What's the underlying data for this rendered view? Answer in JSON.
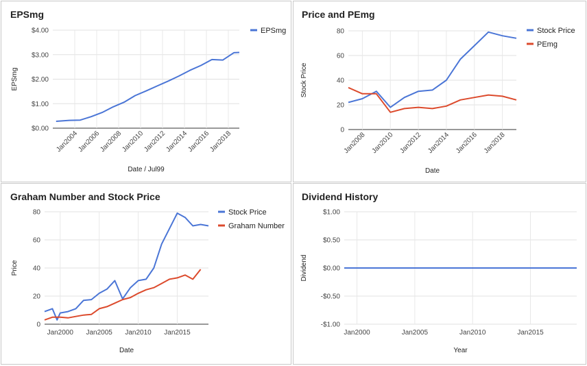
{
  "chart_data": [
    {
      "type": "line",
      "title": "EPSmg",
      "xlabel": "Date / Jul99",
      "ylabel": "EPSmg",
      "x_type": "year",
      "xlim": [
        2002,
        2019
      ],
      "ylim": [
        0,
        4
      ],
      "x_ticks": [
        2004,
        2006,
        2008,
        2010,
        2012,
        2014,
        2016,
        2018
      ],
      "x_tick_labels": [
        "Jan2004",
        "Jan2006",
        "Jan2008",
        "Jan2010",
        "Jan2012",
        "Jan2014",
        "Jan2016",
        "Jan2018"
      ],
      "y_ticks": [
        0,
        1,
        2,
        3,
        4
      ],
      "y_tick_labels": [
        "$0.00",
        "$1.00",
        "$2.00",
        "$3.00",
        "$4.00"
      ],
      "legend": "right",
      "series": [
        {
          "name": "EPSmg",
          "color": "#4a75d6",
          "x": [
            2002.3,
            2003.5,
            2004.5,
            2005.5,
            2006.5,
            2007.5,
            2008.5,
            2009.5,
            2010.5,
            2011.5,
            2012.5,
            2013.5,
            2014.5,
            2015.5,
            2016.5,
            2017.5,
            2018.5,
            2019
          ],
          "y": [
            0.28,
            0.32,
            0.33,
            0.47,
            0.64,
            0.87,
            1.06,
            1.33,
            1.52,
            1.72,
            1.92,
            2.13,
            2.36,
            2.56,
            2.8,
            2.78,
            3.08,
            3.09
          ]
        }
      ]
    },
    {
      "type": "line",
      "title": "Price and PEmg",
      "xlabel": "Date",
      "ylabel": "Stock Price",
      "x_type": "year",
      "xlim": [
        2007,
        2019
      ],
      "ylim": [
        0,
        80
      ],
      "x_ticks": [
        2008,
        2010,
        2012,
        2014,
        2016,
        2018
      ],
      "x_tick_labels": [
        "Jan2008",
        "Jan2010",
        "Jan2012",
        "Jan2014",
        "Jan2016",
        "Jan2018"
      ],
      "y_ticks": [
        0,
        20,
        40,
        60,
        80
      ],
      "y_tick_labels": [
        "0",
        "20",
        "40",
        "60",
        "80"
      ],
      "legend": "right",
      "series": [
        {
          "name": "Stock Price",
          "color": "#4a75d6",
          "x": [
            2007,
            2008,
            2009,
            2010,
            2011,
            2012,
            2013,
            2014,
            2015,
            2016,
            2017,
            2018,
            2019
          ],
          "y": [
            22,
            25,
            31,
            18,
            26,
            31,
            32,
            40,
            57,
            68,
            79,
            76,
            74
          ]
        },
        {
          "name": "PEmg",
          "color": "#dc4a2c",
          "x": [
            2007,
            2008,
            2009,
            2010,
            2011,
            2012,
            2013,
            2014,
            2015,
            2016,
            2017,
            2018,
            2019
          ],
          "y": [
            34,
            29,
            29,
            14,
            17,
            18,
            17,
            19,
            24,
            26,
            28,
            27,
            24
          ]
        }
      ]
    },
    {
      "type": "line",
      "title": "Graham Number and Stock Price",
      "xlabel": "Date",
      "ylabel": "Price",
      "x_type": "year",
      "xlim": [
        1998,
        2019
      ],
      "ylim": [
        0,
        80
      ],
      "x_ticks": [
        2000,
        2005,
        2010,
        2015
      ],
      "x_tick_labels": [
        "Jan2000",
        "Jan2005",
        "Jan2010",
        "Jan2015"
      ],
      "y_ticks": [
        0,
        20,
        40,
        60,
        80
      ],
      "y_tick_labels": [
        "0",
        "20",
        "40",
        "60",
        "80"
      ],
      "legend": "right",
      "series": [
        {
          "name": "Stock Price",
          "color": "#4a75d6",
          "x": [
            1998,
            1999,
            1999.6,
            2000,
            2001,
            2002,
            2003,
            2004,
            2005,
            2006,
            2007,
            2008,
            2009,
            2010,
            2011,
            2012,
            2013,
            2014,
            2015,
            2016,
            2017,
            2018,
            2019
          ],
          "y": [
            9,
            11,
            3,
            8,
            9,
            11,
            17,
            17.5,
            22,
            25,
            31,
            18,
            26,
            31,
            32,
            40,
            57,
            68,
            79,
            76,
            70,
            71,
            70
          ]
        },
        {
          "name": "Graham Number",
          "color": "#dc4a2c",
          "x": [
            1998,
            1999,
            2000,
            2001,
            2002,
            2003,
            2004,
            2005,
            2006,
            2007,
            2008,
            2009,
            2010,
            2011,
            2012,
            2013,
            2014,
            2015,
            2016,
            2017,
            2018
          ],
          "y": [
            3,
            5,
            5,
            4.5,
            5.5,
            6.5,
            7,
            11,
            12.5,
            15,
            17.5,
            19,
            22,
            24.5,
            26,
            29,
            32,
            33,
            35,
            32,
            39
          ]
        }
      ]
    },
    {
      "type": "line",
      "title": "Dividend History",
      "xlabel": "Year",
      "ylabel": "Dividend",
      "x_type": "year",
      "xlim": [
        1998.9,
        2019
      ],
      "ylim": [
        -1,
        1
      ],
      "x_ticks": [
        2000,
        2005,
        2010,
        2015
      ],
      "x_tick_labels": [
        "Jan2000",
        "Jan2005",
        "Jan2010",
        "Jan2015"
      ],
      "y_ticks": [
        -1,
        -0.5,
        0,
        0.5,
        1
      ],
      "y_tick_labels": [
        "-$1.00",
        "-$0.50",
        "$0.00",
        "$0.50",
        "$1.00"
      ],
      "legend": "none",
      "series": [
        {
          "color": "#4a75d6",
          "x": [
            1998.9,
            2019
          ],
          "y": [
            0,
            0
          ]
        }
      ]
    }
  ]
}
